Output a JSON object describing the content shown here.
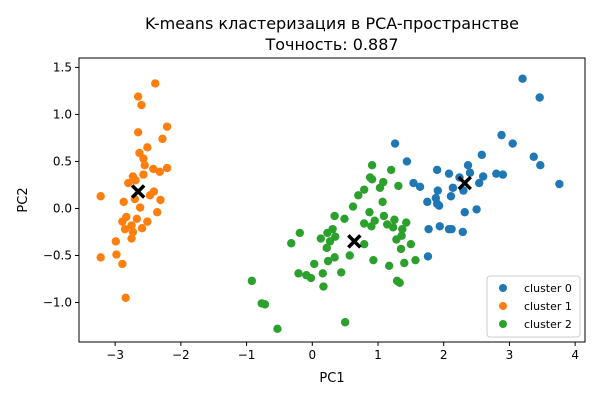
{
  "chart_data": {
    "type": "scatter",
    "title": "K-means кластеризация в PCA-пространстве",
    "subtitle": "Точность: 0.887",
    "xlabel": "PC1",
    "ylabel": "PC2",
    "xlim": [
      -3.55,
      4.15
    ],
    "ylim": [
      -1.42,
      1.6
    ],
    "xticks": [
      -3,
      -2,
      -1,
      0,
      1,
      2,
      3,
      4
    ],
    "xtick_labels": [
      "−3",
      "−2",
      "−1",
      "0",
      "1",
      "2",
      "3",
      "4"
    ],
    "yticks": [
      -1.0,
      -0.5,
      0.0,
      0.5,
      1.0,
      1.5
    ],
    "ytick_labels": [
      "−1.0",
      "−0.5",
      "0.0",
      "0.5",
      "1.0",
      "1.5"
    ],
    "grid": false,
    "legend_position": "lower-right",
    "series": [
      {
        "name": "cluster 0",
        "color": "#1f77b4",
        "points": [
          [
            3.2,
            1.38
          ],
          [
            3.46,
            1.18
          ],
          [
            2.88,
            0.78
          ],
          [
            3.05,
            0.69
          ],
          [
            1.26,
            0.69
          ],
          [
            2.58,
            0.57
          ],
          [
            3.37,
            0.55
          ],
          [
            3.47,
            0.46
          ],
          [
            1.44,
            0.5
          ],
          [
            2.37,
            0.46
          ],
          [
            1.9,
            0.41
          ],
          [
            2.08,
            0.37
          ],
          [
            2.4,
            0.38
          ],
          [
            2.8,
            0.37
          ],
          [
            2.9,
            0.36
          ],
          [
            2.6,
            0.34
          ],
          [
            2.24,
            0.33
          ],
          [
            2.54,
            0.27
          ],
          [
            3.76,
            0.26
          ],
          [
            1.54,
            0.27
          ],
          [
            1.64,
            0.23
          ],
          [
            2.14,
            0.22
          ],
          [
            1.91,
            0.19
          ],
          [
            2.3,
            0.19
          ],
          [
            2.11,
            0.13
          ],
          [
            1.88,
            0.11
          ],
          [
            1.75,
            0.07
          ],
          [
            1.9,
            0.05
          ],
          [
            1.93,
            0.03
          ],
          [
            2.5,
            -0.01
          ],
          [
            2.32,
            -0.04
          ],
          [
            1.94,
            -0.19
          ],
          [
            1.77,
            -0.22
          ],
          [
            2.08,
            -0.22
          ],
          [
            2.12,
            -0.22
          ],
          [
            2.29,
            -0.25
          ],
          [
            1.76,
            -0.51
          ]
        ]
      },
      {
        "name": "cluster 1",
        "color": "#ff7f0e",
        "points": [
          [
            -2.39,
            1.33
          ],
          [
            -2.65,
            1.19
          ],
          [
            -2.6,
            1.1
          ],
          [
            -2.21,
            0.87
          ],
          [
            -2.28,
            0.74
          ],
          [
            -2.65,
            0.81
          ],
          [
            -2.51,
            0.65
          ],
          [
            -2.63,
            0.59
          ],
          [
            -2.57,
            0.53
          ],
          [
            -2.55,
            0.46
          ],
          [
            -2.42,
            0.42
          ],
          [
            -2.32,
            0.39
          ],
          [
            -2.21,
            0.43
          ],
          [
            -2.57,
            0.36
          ],
          [
            -2.73,
            0.34
          ],
          [
            -2.8,
            0.27
          ],
          [
            -2.69,
            0.3
          ],
          [
            -3.22,
            0.13
          ],
          [
            -2.87,
            0.07
          ],
          [
            -2.7,
            0.1
          ],
          [
            -2.47,
            0.14
          ],
          [
            -2.41,
            0.18
          ],
          [
            -2.31,
            0.09
          ],
          [
            -2.62,
            0.01
          ],
          [
            -2.36,
            -0.04
          ],
          [
            -2.83,
            -0.09
          ],
          [
            -2.89,
            -0.14
          ],
          [
            -2.67,
            -0.11
          ],
          [
            -2.51,
            -0.14
          ],
          [
            -2.75,
            -0.18
          ],
          [
            -2.59,
            -0.21
          ],
          [
            -2.85,
            -0.22
          ],
          [
            -2.73,
            -0.25
          ],
          [
            -2.75,
            -0.32
          ],
          [
            -2.99,
            -0.35
          ],
          [
            -3.22,
            -0.52
          ],
          [
            -2.98,
            -0.49
          ],
          [
            -2.89,
            -0.59
          ],
          [
            -2.84,
            -0.95
          ]
        ]
      },
      {
        "name": "cluster 2",
        "color": "#2ca02c",
        "points": [
          [
            0.91,
            0.46
          ],
          [
            1.2,
            0.41
          ],
          [
            0.88,
            0.33
          ],
          [
            0.91,
            0.31
          ],
          [
            1.08,
            0.28
          ],
          [
            1.03,
            0.22
          ],
          [
            1.31,
            0.24
          ],
          [
            0.79,
            0.2
          ],
          [
            0.7,
            0.14
          ],
          [
            0.62,
            0.02
          ],
          [
            1.07,
            0.07
          ],
          [
            0.87,
            -0.04
          ],
          [
            0.34,
            -0.08
          ],
          [
            0.49,
            -0.11
          ],
          [
            1.09,
            -0.08
          ],
          [
            1.25,
            -0.12
          ],
          [
            1.43,
            -0.15
          ],
          [
            0.95,
            -0.13
          ],
          [
            0.79,
            -0.16
          ],
          [
            0.9,
            -0.19
          ],
          [
            1.14,
            -0.17
          ],
          [
            1.23,
            -0.2
          ],
          [
            1.37,
            -0.22
          ],
          [
            1.36,
            -0.29
          ],
          [
            1.28,
            -0.33
          ],
          [
            1.5,
            -0.38
          ],
          [
            1.35,
            -0.43
          ],
          [
            -0.19,
            -0.26
          ],
          [
            -0.32,
            -0.37
          ],
          [
            0.31,
            -0.22
          ],
          [
            0.23,
            -0.26
          ],
          [
            0.13,
            -0.32
          ],
          [
            0.35,
            -0.3
          ],
          [
            0.27,
            -0.35
          ],
          [
            0.22,
            -0.42
          ],
          [
            0.79,
            -0.38
          ],
          [
            0.57,
            -0.5
          ],
          [
            0.34,
            -0.52
          ],
          [
            0.24,
            -0.56
          ],
          [
            0.93,
            -0.55
          ],
          [
            0.03,
            -0.59
          ],
          [
            1.17,
            -0.61
          ],
          [
            1.4,
            -0.58
          ],
          [
            1.57,
            -0.55
          ],
          [
            -0.21,
            -0.69
          ],
          [
            -0.09,
            -0.71
          ],
          [
            -0.02,
            -0.74
          ],
          [
            0.16,
            -0.69
          ],
          [
            0.44,
            -0.68
          ],
          [
            0.17,
            -0.83
          ],
          [
            1.29,
            -0.77
          ],
          [
            1.33,
            -0.79
          ],
          [
            -0.92,
            -0.77
          ],
          [
            -0.77,
            -1.01
          ],
          [
            -0.72,
            -1.02
          ],
          [
            -0.53,
            -1.28
          ],
          [
            0.5,
            -1.21
          ]
        ]
      }
    ],
    "centroids": {
      "color": "#000000",
      "marker": "x",
      "points": [
        [
          2.32,
          0.27
        ],
        [
          -2.65,
          0.18
        ],
        [
          0.64,
          -0.35
        ]
      ]
    }
  }
}
